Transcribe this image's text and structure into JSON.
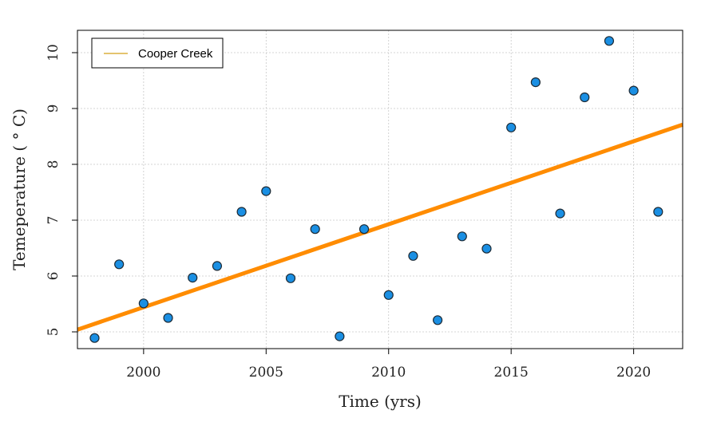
{
  "chart_data": {
    "type": "scatter",
    "xlabel": "Time (yrs)",
    "ylabel": "Temeperature ( ° C)",
    "xlim": [
      1997.3,
      2022.0
    ],
    "ylim": [
      4.7,
      10.4
    ],
    "xticks": [
      2000,
      2005,
      2010,
      2015,
      2020
    ],
    "yticks": [
      5,
      6,
      7,
      8,
      9,
      10
    ],
    "grid": true,
    "legend": {
      "position": "top-left",
      "entries": [
        "Cooper Creek"
      ]
    },
    "series": [
      {
        "name": "",
        "kind": "points",
        "color": "#1a8fe3",
        "x": [
          1998,
          1999,
          2000,
          2001,
          2002,
          2003,
          2004,
          2005,
          2006,
          2007,
          2008,
          2009,
          2010,
          2011,
          2012,
          2013,
          2014,
          2015,
          2016,
          2017,
          2018,
          2019,
          2020,
          2021
        ],
        "y": [
          4.89,
          6.21,
          5.51,
          5.25,
          5.97,
          6.18,
          7.15,
          7.52,
          5.96,
          6.84,
          4.92,
          6.84,
          5.66,
          6.36,
          5.21,
          6.71,
          6.49,
          8.66,
          9.47,
          7.12,
          9.2,
          10.21,
          9.32,
          7.15
        ]
      },
      {
        "name": "Cooper Creek",
        "kind": "trend",
        "color": "#ff8c00",
        "x": [
          1997.3,
          2022.0
        ],
        "y": [
          5.04,
          8.71
        ]
      }
    ],
    "colors": {
      "legend_line": "#d4a017",
      "grid": "#c8c8c8",
      "axis": "#000000"
    }
  }
}
